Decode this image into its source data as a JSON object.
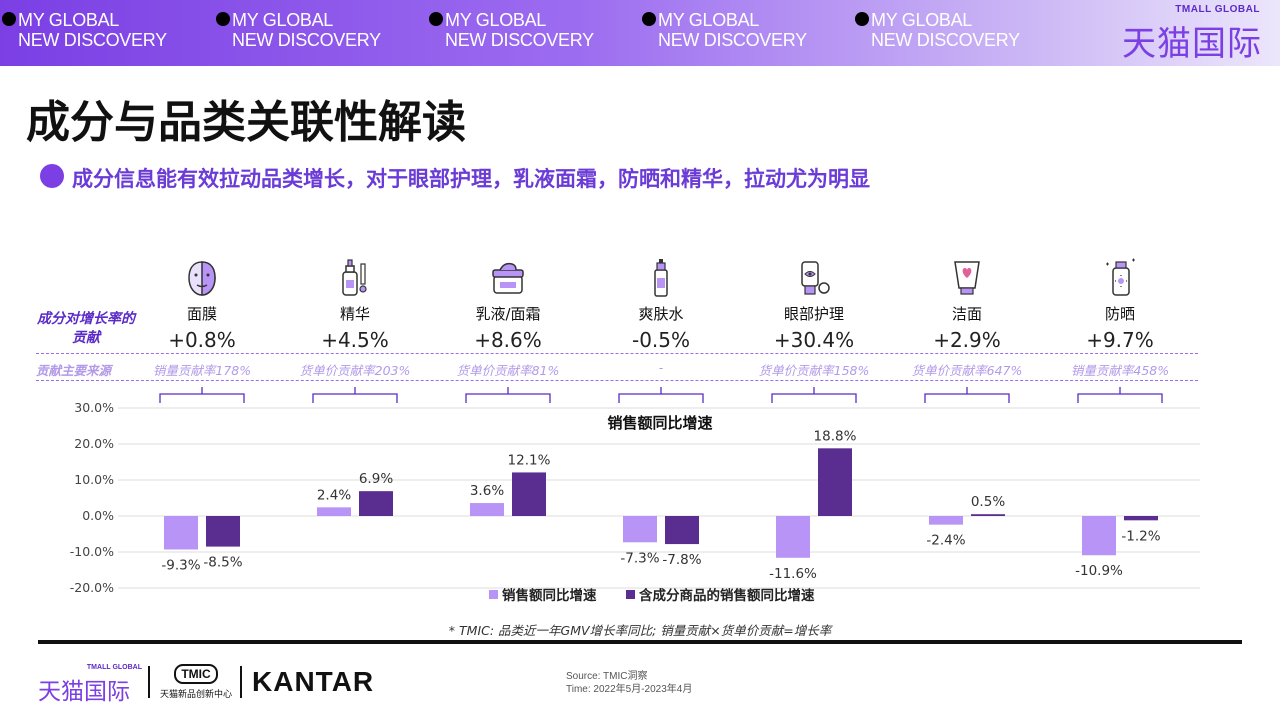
{
  "banner": {
    "tags": [
      {
        "line1": "MY GLOBAL",
        "line2": "NEW DISCOVERY"
      },
      {
        "line1": "MY GLOBAL",
        "line2": "NEW DISCOVERY"
      },
      {
        "line1": "MY GLOBAL",
        "line2": "NEW DISCOVERY"
      },
      {
        "line1": "MY GLOBAL",
        "line2": "NEW DISCOVERY"
      },
      {
        "line1": "MY GLOBAL",
        "line2": "NEW DISCOVERY"
      }
    ],
    "brand_en": "TMALL GLOBAL",
    "brand_zh": "天猫国际"
  },
  "title": "成分与品类关联性解读",
  "subtitle": "成分信息能有效拉动品类增长，对于眼部护理，乳液面霜，防晒和精华，拉动尤为明显",
  "row_labels": {
    "contribution": "成分对增长率的贡献",
    "source": "贡献主要来源"
  },
  "categories": [
    {
      "name": "面膜",
      "contribution": "+0.8%",
      "source": "销量贡献率178%",
      "icon": "face-mask-icon"
    },
    {
      "name": "精华",
      "contribution": "+4.5%",
      "source": "货单价贡献率203%",
      "icon": "serum-dropper-icon"
    },
    {
      "name": "乳液/面霜",
      "contribution": "+8.6%",
      "source": "货单价贡献率81%",
      "icon": "cream-jar-icon"
    },
    {
      "name": "爽肤水",
      "contribution": "-0.5%",
      "source": "-",
      "icon": "toner-bottle-icon"
    },
    {
      "name": "眼部护理",
      "contribution": "+30.4%",
      "source": "货单价贡献率158%",
      "icon": "eye-care-tube-icon"
    },
    {
      "name": "洁面",
      "contribution": "+2.9%",
      "source": "货单价贡献率647%",
      "icon": "cleanser-tube-icon"
    },
    {
      "name": "防晒",
      "contribution": "+9.7%",
      "source": "销量贡献率458%",
      "icon": "sunscreen-bottle-icon"
    }
  ],
  "chart_data": {
    "type": "bar",
    "title": "销售额同比增速",
    "categories": [
      "面膜",
      "精华",
      "乳液/面霜",
      "爽肤水",
      "眼部护理",
      "洁面",
      "防晒"
    ],
    "series": [
      {
        "name": "销售额同比增速",
        "color": "#b794f6",
        "values": [
          -9.3,
          2.4,
          3.6,
          -7.3,
          -11.6,
          -2.4,
          -10.9
        ]
      },
      {
        "name": "含成分商品的销售额同比增速",
        "color": "#5a2d91",
        "values": [
          -8.5,
          6.9,
          12.1,
          -7.8,
          18.8,
          0.5,
          -1.2
        ]
      }
    ],
    "ylim": [
      -20,
      30
    ],
    "yticks": [
      -20,
      -10,
      0,
      10,
      20,
      30
    ],
    "ytick_labels": [
      "-20.0%",
      "-10.0%",
      "0.0%",
      "10.0%",
      "20.0%",
      "30.0%"
    ],
    "value_suffix": "%",
    "grid": true,
    "legend": "bottom"
  },
  "footnote": "* TMIC: 品类近一年GMV增长率同比; 销量贡献×货单价贡献=增长率",
  "footer": {
    "tmall_en": "TMALL GLOBAL",
    "tmall_zh": "天猫国际",
    "tmic_badge": "TMIC",
    "tmic_cn": "天猫新品创新中心",
    "kantar": "KANTAR",
    "source_line": "Source: TMIC洞察",
    "time_line": "Time: 2022年5月-2023年4月"
  },
  "colors": {
    "accent": "#7b3fe4",
    "light_purple": "#b794f6",
    "dark_purple": "#5a2d91",
    "source_text": "#b39ae8"
  }
}
